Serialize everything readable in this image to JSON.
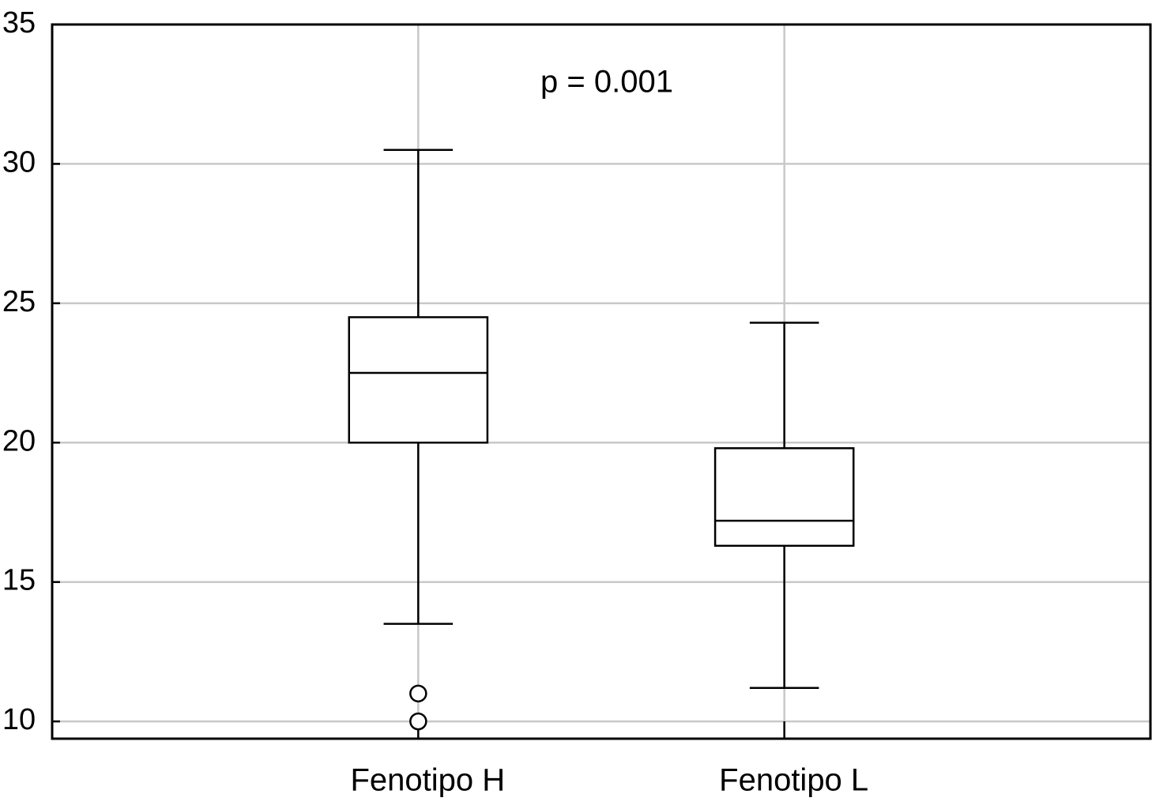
{
  "chart_data": {
    "type": "box",
    "categories": [
      "Fenotipo H",
      "Fenotipo L"
    ],
    "boxes": [
      {
        "whislo": 13.5,
        "q1": 20.0,
        "median": 22.5,
        "q3": 24.5,
        "whishi": 30.5,
        "fliers": [
          11.0,
          10.0
        ]
      },
      {
        "whislo": 11.2,
        "q1": 16.3,
        "median": 17.2,
        "q3": 19.8,
        "whishi": 24.3,
        "fliers": []
      }
    ],
    "annotation": "p = 0.001",
    "ylim": [
      9.38,
      35
    ],
    "yticks": [
      10,
      15,
      20,
      25,
      30,
      35
    ],
    "grid": true,
    "color": "#000000"
  }
}
